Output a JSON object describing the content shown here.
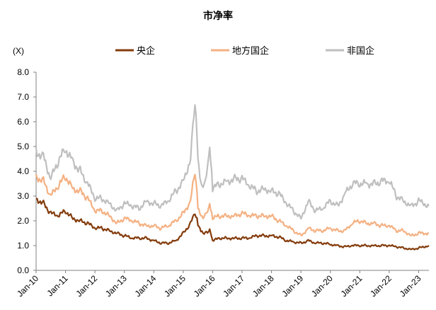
{
  "chart_data": {
    "type": "line",
    "title": "市净率",
    "ylabel": "(X)",
    "xlabel": "",
    "ylim": [
      0,
      8
    ],
    "yticks": [
      "0.0",
      "1.0",
      "2.0",
      "3.0",
      "4.0",
      "5.0",
      "6.0",
      "7.0",
      "8.0"
    ],
    "xlim": [
      2010,
      2023.35
    ],
    "xticks": [
      "Jan-10",
      "Jan-11",
      "Jan-12",
      "Jan-13",
      "Jan-14",
      "Jan-15",
      "Jan-16",
      "Jan-17",
      "Jan-18",
      "Jan-19",
      "Jan-20",
      "Jan-21",
      "Jan-22",
      "Jan-23"
    ],
    "grid": false,
    "legend_position": "top-center",
    "x": [
      2010,
      2010.25,
      2010.5,
      2010.75,
      2011,
      2011.25,
      2011.5,
      2011.75,
      2012,
      2012.25,
      2012.5,
      2012.75,
      2013,
      2013.25,
      2013.5,
      2013.75,
      2014,
      2014.25,
      2014.5,
      2014.75,
      2015,
      2015.25,
      2015.4,
      2015.5,
      2015.6,
      2015.75,
      2015.9,
      2016,
      2016.25,
      2016.5,
      2016.75,
      2017,
      2017.25,
      2017.5,
      2017.75,
      2018,
      2018.25,
      2018.5,
      2018.75,
      2019,
      2019.25,
      2019.5,
      2019.75,
      2020,
      2020.25,
      2020.5,
      2020.75,
      2021,
      2021.25,
      2021.5,
      2021.75,
      2022,
      2022.25,
      2022.5,
      2022.75,
      2023,
      2023.35
    ],
    "series": [
      {
        "name": "央企",
        "color": "#843C0C",
        "values": [
          2.9,
          2.7,
          2.3,
          2.2,
          2.4,
          2.1,
          2.0,
          1.9,
          1.7,
          1.7,
          1.6,
          1.5,
          1.4,
          1.3,
          1.3,
          1.3,
          1.2,
          1.1,
          1.1,
          1.2,
          1.5,
          1.9,
          2.3,
          1.9,
          1.6,
          1.5,
          1.6,
          1.2,
          1.3,
          1.3,
          1.3,
          1.3,
          1.3,
          1.4,
          1.4,
          1.4,
          1.35,
          1.2,
          1.15,
          1.1,
          1.2,
          1.1,
          1.1,
          1.05,
          1.0,
          0.95,
          1.0,
          1.0,
          1.0,
          1.0,
          1.0,
          1.0,
          0.95,
          0.9,
          0.85,
          0.9,
          1.0
        ]
      },
      {
        "name": "地方国企",
        "color": "#F4B183",
        "values": [
          3.8,
          3.6,
          3.0,
          3.4,
          3.8,
          3.3,
          3.2,
          2.9,
          2.4,
          2.4,
          2.2,
          1.9,
          2.1,
          2.0,
          1.9,
          1.8,
          1.8,
          1.7,
          1.8,
          2.0,
          2.3,
          2.8,
          4.0,
          2.6,
          2.2,
          2.2,
          2.6,
          2.1,
          2.2,
          2.2,
          2.2,
          2.3,
          2.2,
          2.2,
          2.2,
          2.2,
          2.0,
          1.8,
          1.6,
          1.4,
          1.7,
          1.6,
          1.6,
          1.7,
          1.6,
          1.6,
          1.9,
          2.0,
          1.9,
          1.9,
          1.8,
          1.8,
          1.6,
          1.6,
          1.4,
          1.5,
          1.5
        ]
      },
      {
        "name": "非国企",
        "color": "#BFBFBF",
        "values": [
          4.8,
          4.6,
          3.7,
          4.4,
          4.9,
          4.4,
          4.0,
          3.5,
          2.9,
          2.9,
          2.7,
          2.4,
          2.7,
          2.6,
          2.5,
          2.8,
          2.7,
          2.6,
          2.8,
          3.2,
          3.6,
          4.5,
          6.85,
          4.6,
          3.5,
          3.5,
          4.9,
          3.3,
          3.5,
          3.6,
          3.7,
          3.7,
          3.4,
          3.2,
          3.3,
          3.2,
          3.1,
          2.7,
          2.4,
          2.1,
          2.8,
          2.4,
          2.5,
          2.8,
          2.6,
          3.1,
          3.5,
          3.5,
          3.5,
          3.5,
          3.6,
          3.6,
          3.0,
          2.8,
          2.6,
          2.8,
          2.6
        ]
      }
    ]
  }
}
